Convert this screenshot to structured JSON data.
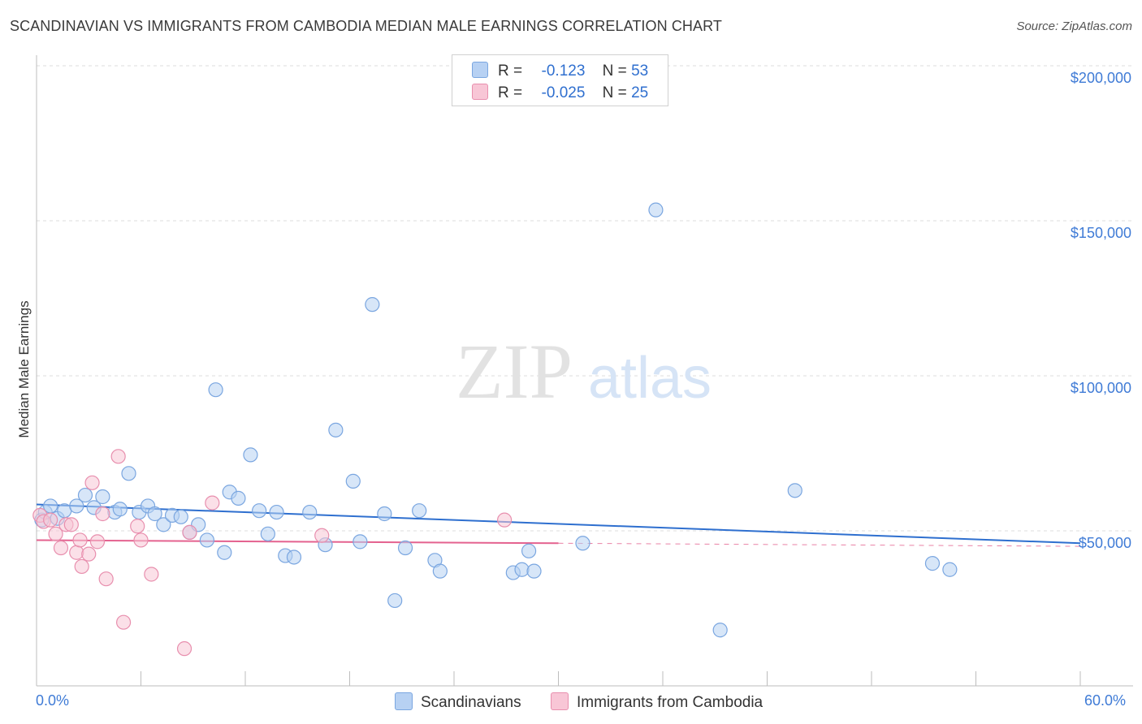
{
  "title": "SCANDINAVIAN VS IMMIGRANTS FROM CAMBODIA MEDIAN MALE EARNINGS CORRELATION CHART",
  "source": "Source: ZipAtlas.com",
  "watermark": {
    "zip": "ZIP",
    "atlas": "atlas"
  },
  "legend": {
    "rows": [
      {
        "r_label": "R =",
        "r_value": "-0.123",
        "n_label": "N =",
        "n_value": "53"
      },
      {
        "r_label": "R =",
        "r_value": "-0.025",
        "n_label": "N =",
        "n_value": "25"
      }
    ]
  },
  "bottom_legend": {
    "series1": "Scandinavians",
    "series2": "Immigrants from Cambodia"
  },
  "colors": {
    "series1_fill": "#b7d1f3",
    "series1_stroke": "#7aa6e0",
    "series1_line": "#2e6fcf",
    "series2_fill": "#f8c6d6",
    "series2_stroke": "#e88fae",
    "series2_line": "#e4628f",
    "axis_text": "#3f7bd6"
  },
  "chart_data": {
    "type": "scatter",
    "title": "SCANDINAVIAN VS IMMIGRANTS FROM CAMBODIA MEDIAN MALE EARNINGS CORRELATION CHART",
    "xlabel": "",
    "ylabel": "Median Male Earnings",
    "xlim": [
      0,
      60
    ],
    "ylim": [
      0,
      205000
    ],
    "x_tick_labels": [
      "0.0%",
      "60.0%"
    ],
    "y_tick_labels": [
      "$50,000",
      "$100,000",
      "$150,000",
      "$200,000"
    ],
    "y_ticks": [
      50000,
      100000,
      150000,
      200000
    ],
    "grid": true,
    "series": [
      {
        "name": "Scandinavians",
        "r": -0.123,
        "n": 53,
        "trend": {
          "x": [
            0,
            60
          ],
          "y": [
            58500,
            46000
          ]
        },
        "points": [
          [
            0.3,
            53500
          ],
          [
            0.5,
            56000
          ],
          [
            0.8,
            58000
          ],
          [
            1.2,
            54000
          ],
          [
            1.6,
            56500
          ],
          [
            2.3,
            58000
          ],
          [
            2.8,
            61500
          ],
          [
            3.3,
            57500
          ],
          [
            3.8,
            61000
          ],
          [
            4.5,
            56000
          ],
          [
            4.8,
            57000
          ],
          [
            5.3,
            68500
          ],
          [
            5.9,
            56000
          ],
          [
            6.4,
            58000
          ],
          [
            6.8,
            55500
          ],
          [
            7.3,
            52000
          ],
          [
            7.8,
            55000
          ],
          [
            8.3,
            54500
          ],
          [
            8.8,
            49500
          ],
          [
            9.3,
            52000
          ],
          [
            9.8,
            47000
          ],
          [
            10.3,
            95500
          ],
          [
            10.8,
            43000
          ],
          [
            11.1,
            62500
          ],
          [
            11.6,
            60500
          ],
          [
            12.3,
            74500
          ],
          [
            12.8,
            56500
          ],
          [
            13.3,
            49000
          ],
          [
            13.8,
            56000
          ],
          [
            14.3,
            42000
          ],
          [
            14.8,
            41500
          ],
          [
            15.7,
            56000
          ],
          [
            16.6,
            45500
          ],
          [
            17.2,
            82500
          ],
          [
            18.2,
            66000
          ],
          [
            18.6,
            46500
          ],
          [
            19.3,
            123000
          ],
          [
            20.0,
            55500
          ],
          [
            20.6,
            27500
          ],
          [
            21.2,
            44500
          ],
          [
            22.0,
            56500
          ],
          [
            22.9,
            40500
          ],
          [
            23.2,
            37000
          ],
          [
            27.4,
            36500
          ],
          [
            27.9,
            37500
          ],
          [
            28.3,
            43500
          ],
          [
            28.6,
            37000
          ],
          [
            31.4,
            46000
          ],
          [
            35.6,
            153500
          ],
          [
            39.3,
            18000
          ],
          [
            43.6,
            63000
          ],
          [
            51.5,
            39500
          ],
          [
            52.5,
            37500
          ]
        ]
      },
      {
        "name": "Immigrants from Cambodia",
        "r": -0.025,
        "n": 25,
        "trend": {
          "x": [
            0,
            30
          ],
          "y": [
            47000,
            46000
          ]
        },
        "trend_dashed": {
          "x": [
            30,
            60
          ],
          "y": [
            46000,
            45000
          ]
        },
        "points": [
          [
            0.2,
            55000
          ],
          [
            0.4,
            53000
          ],
          [
            0.8,
            53500
          ],
          [
            1.1,
            49000
          ],
          [
            1.4,
            44500
          ],
          [
            1.7,
            52000
          ],
          [
            2.0,
            52000
          ],
          [
            2.3,
            43000
          ],
          [
            2.5,
            47000
          ],
          [
            2.6,
            38500
          ],
          [
            3.0,
            42500
          ],
          [
            3.2,
            65500
          ],
          [
            3.5,
            46500
          ],
          [
            3.8,
            55500
          ],
          [
            4.0,
            34500
          ],
          [
            4.7,
            74000
          ],
          [
            5.0,
            20500
          ],
          [
            5.8,
            51500
          ],
          [
            6.0,
            47000
          ],
          [
            6.6,
            36000
          ],
          [
            8.5,
            12000
          ],
          [
            8.8,
            49500
          ],
          [
            10.1,
            59000
          ],
          [
            16.4,
            48500
          ],
          [
            26.9,
            53500
          ]
        ]
      }
    ]
  }
}
